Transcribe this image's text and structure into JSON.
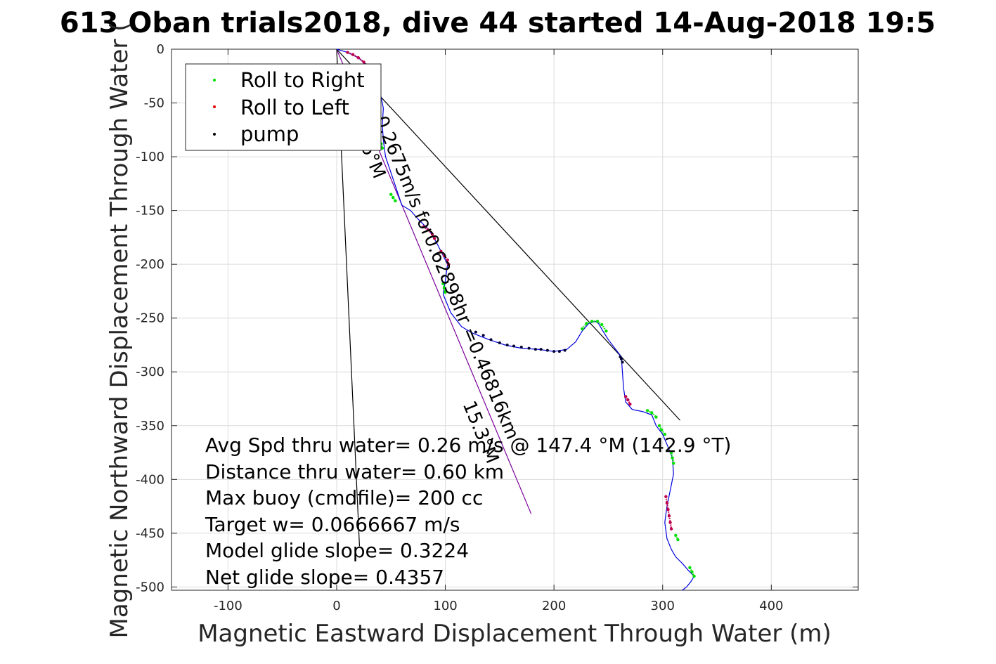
{
  "chart_data": {
    "type": "line",
    "title": "613 Oban trials2018, dive 44 started 14-Aug-2018 19:5",
    "xlabel": "Magnetic Eastward Displacement Through Water (m)",
    "ylabel": "Magnetic Northward Displacement Through Water (",
    "xlim": [
      -152,
      480
    ],
    "ylim": [
      -503,
      0
    ],
    "xticks": [
      -100,
      0,
      100,
      200,
      300,
      400
    ],
    "xtick_labels": [
      "-100",
      "0",
      "100",
      "200",
      "300",
      "400"
    ],
    "yticks": [
      0,
      -50,
      -100,
      -150,
      -200,
      -250,
      -300,
      -350,
      -400,
      -450,
      -500
    ],
    "ytick_labels": [
      "0",
      "-50",
      "-100",
      "-150",
      "-200",
      "-250",
      "-300",
      "-350",
      "-400",
      "-450",
      "-500"
    ],
    "grid": true,
    "legend": {
      "location": "top-left",
      "entries": [
        {
          "label": "Roll to Right",
          "color": "#00e000"
        },
        {
          "label": "Roll to Left",
          "color": "#e00000"
        },
        {
          "label": "pump",
          "color": "#000000"
        }
      ]
    },
    "track": {
      "color": "#0000dd",
      "x": [
        0,
        10,
        20,
        28,
        35,
        40,
        43,
        42,
        43,
        45,
        50,
        55,
        60,
        68,
        75,
        85,
        92,
        98,
        102,
        100,
        98,
        105,
        115,
        125,
        140,
        155,
        170,
        185,
        200,
        212,
        220,
        226,
        232,
        238,
        241,
        245,
        250,
        256,
        262,
        263,
        264,
        266,
        272,
        282,
        290,
        294,
        300,
        305,
        309,
        310,
        307,
        304,
        302,
        304,
        308,
        312,
        318,
        324,
        329,
        326,
        322,
        318
      ],
      "y": [
        0,
        -3,
        -8,
        -15,
        -25,
        -40,
        -55,
        -70,
        -85,
        -100,
        -115,
        -130,
        -145,
        -150,
        -158,
        -168,
        -180,
        -192,
        -200,
        -215,
        -228,
        -245,
        -258,
        -264,
        -270,
        -275,
        -278,
        -279,
        -281,
        -279,
        -272,
        -262,
        -255,
        -253,
        -255,
        -262,
        -270,
        -278,
        -286,
        -300,
        -315,
        -328,
        -335,
        -337,
        -340,
        -350,
        -358,
        -370,
        -380,
        -395,
        -410,
        -425,
        -440,
        -455,
        -465,
        -472,
        -478,
        -485,
        -490,
        -495,
        -500,
        -503
      ]
    },
    "roll_right_segments": [
      {
        "x": [
          38,
          41,
          42
        ],
        "y": [
          -85,
          -88,
          -92
        ]
      },
      {
        "x": [
          50,
          52,
          54
        ],
        "y": [
          -135,
          -138,
          -141
        ]
      },
      {
        "x": [
          98,
          99,
          100
        ],
        "y": [
          -218,
          -222,
          -226
        ]
      },
      {
        "x": [
          226,
          230,
          235,
          240,
          244,
          248
        ],
        "y": [
          -260,
          -255,
          -253,
          -253,
          -256,
          -262
        ]
      },
      {
        "x": [
          286,
          290,
          294
        ],
        "y": [
          -336,
          -338,
          -342
        ]
      },
      {
        "x": [
          297,
          299,
          302
        ],
        "y": [
          -350,
          -354,
          -358
        ]
      },
      {
        "x": [
          308,
          309,
          310
        ],
        "y": [
          -375,
          -380,
          -385
        ]
      },
      {
        "x": [
          312,
          314
        ],
        "y": [
          -452,
          -456
        ]
      },
      {
        "x": [
          325,
          327,
          329
        ],
        "y": [
          -482,
          -486,
          -490
        ]
      }
    ],
    "roll_left_segments": [
      {
        "x": [
          10,
          15,
          20,
          25,
          30
        ],
        "y": [
          -3,
          -5,
          -8,
          -12,
          -17
        ]
      },
      {
        "x": [
          80,
          84,
          88,
          90
        ],
        "y": [
          -165,
          -168,
          -172,
          -176
        ]
      },
      {
        "x": [
          96,
          99,
          102,
          103
        ],
        "y": [
          -188,
          -192,
          -196,
          -200
        ]
      },
      {
        "x": [
          266,
          268,
          270
        ],
        "y": [
          -323,
          -326,
          -330
        ]
      },
      {
        "x": [
          303,
          304,
          305,
          306,
          307,
          308
        ],
        "y": [
          -416,
          -422,
          -428,
          -434,
          -440,
          -446
        ]
      }
    ],
    "pump_points": {
      "x": [
        128,
        135,
        142,
        150,
        157,
        163,
        170,
        177,
        183,
        188,
        194,
        200,
        205,
        210,
        261,
        262,
        263
      ],
      "y": [
        -263,
        -266,
        -270,
        -273,
        -275,
        -276,
        -277,
        -278,
        -279,
        -279,
        -280,
        -281,
        -281,
        -280,
        -286,
        -288,
        -291
      ]
    },
    "reference_lines": [
      {
        "name": "heading-line",
        "color": "#7a0099",
        "x": [
          0,
          179
        ],
        "y": [
          0,
          -432
        ]
      },
      {
        "name": "envelope-line-left",
        "color": "#000000",
        "x": [
          0,
          21
        ],
        "y": [
          0,
          -462
        ]
      },
      {
        "name": "envelope-line-right",
        "color": "#000000",
        "x": [
          0,
          316
        ],
        "y": [
          0,
          -345
        ]
      }
    ],
    "rotated_annotations": [
      {
        "text": "0.2675m/s for0.62898hr =0.46816km",
        "x": 35,
        "y": -65,
        "angle_deg": 67.5
      },
      {
        "text": "15.3°M",
        "x": 116,
        "y": -330,
        "angle_deg": 67.5
      },
      {
        "text": "6°M",
        "x": 22,
        "y": -90,
        "angle_deg": 67.5
      }
    ],
    "annotation_lines": [
      "Avg Spd thru water=  0.26 m/s @ 147.4 °M (142.9 °T)",
      "Distance thru water=  0.60 km",
      "Max buoy (cmdfile)= 200 cc",
      "Target w= 0.0666667 m/s",
      "Model glide slope= 0.3224",
      "Net glide slope= 0.4357"
    ]
  }
}
